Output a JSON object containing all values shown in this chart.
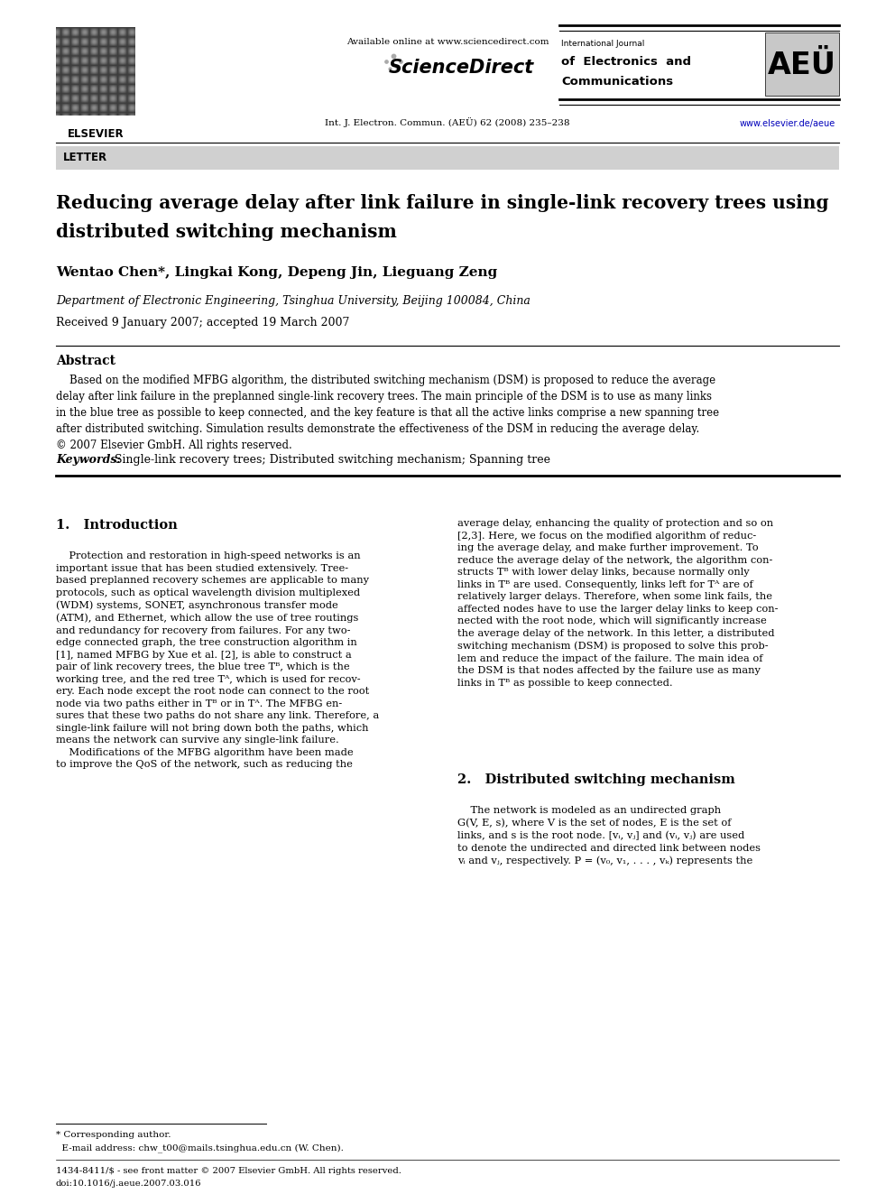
{
  "page_width": 9.92,
  "page_height": 13.23,
  "dpi": 100,
  "bg_color": "#ffffff",
  "header": {
    "available_online": "Available online at www.sciencedirect.com",
    "journal_info": "Int. J. Electron. Commun. (AEÜ) 62 (2008) 235–238",
    "journal_name_line1": "International Journal",
    "journal_name_line2": "of Electronics and",
    "journal_name_line3": "Communications",
    "journal_abbrev": "AEÜ",
    "website": "www.elsevier.de/aeue",
    "elsevier_text": "ELSEVIER"
  },
  "letter_label": "LETTER",
  "article_title_line1": "Reducing average delay after link failure in single-link recovery trees using",
  "article_title_line2": "distributed switching mechanism",
  "authors": "Wentao Chen*, Lingkai Kong, Depeng Jin, Lieguang Zeng",
  "affiliation": "Department of Electronic Engineering, Tsinghua University, Beijing 100084, China",
  "received": "Received 9 January 2007; accepted 19 March 2007",
  "abstract_title": "Abstract",
  "keywords_label": "Keywords:",
  "keywords_text": "Single-link recovery trees; Distributed switching mechanism; Spanning tree",
  "section1_title": "1.   Introduction",
  "section2_title": "2.   Distributed switching mechanism",
  "footnote_line1": "* Corresponding author.",
  "footnote_line2": "  E-mail address: chw_t00@mails.tsinghua.edu.cn (W. Chen).",
  "footer_line1": "1434-8411/$ - see front matter © 2007 Elsevier GmbH. All rights reserved.",
  "footer_line2": "doi:10.1016/j.aeue.2007.03.016"
}
